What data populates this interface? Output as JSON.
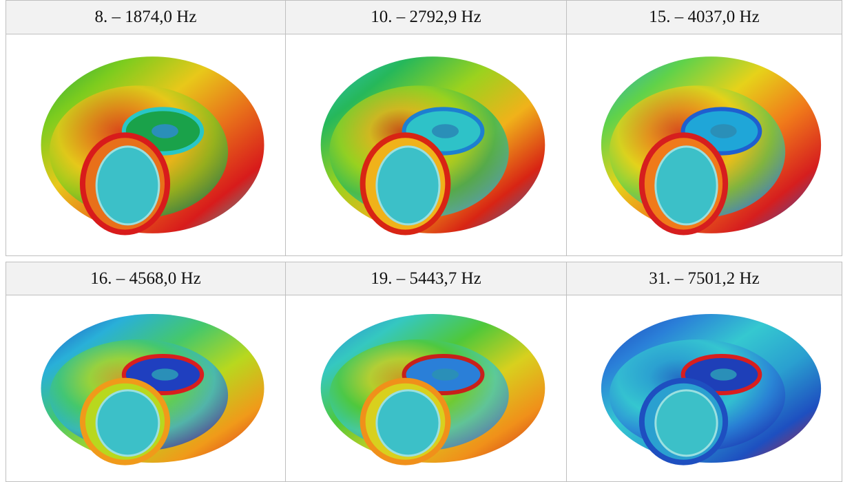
{
  "table": {
    "rows": [
      [
        "8. – 1874,0 Hz",
        "10. – 2792,9 Hz",
        "15. – 4037,0 Hz"
      ],
      [
        "16. – 4568,0 Hz",
        "19. – 5443,7 Hz",
        "31. – 7501,2 Hz"
      ]
    ]
  }
}
